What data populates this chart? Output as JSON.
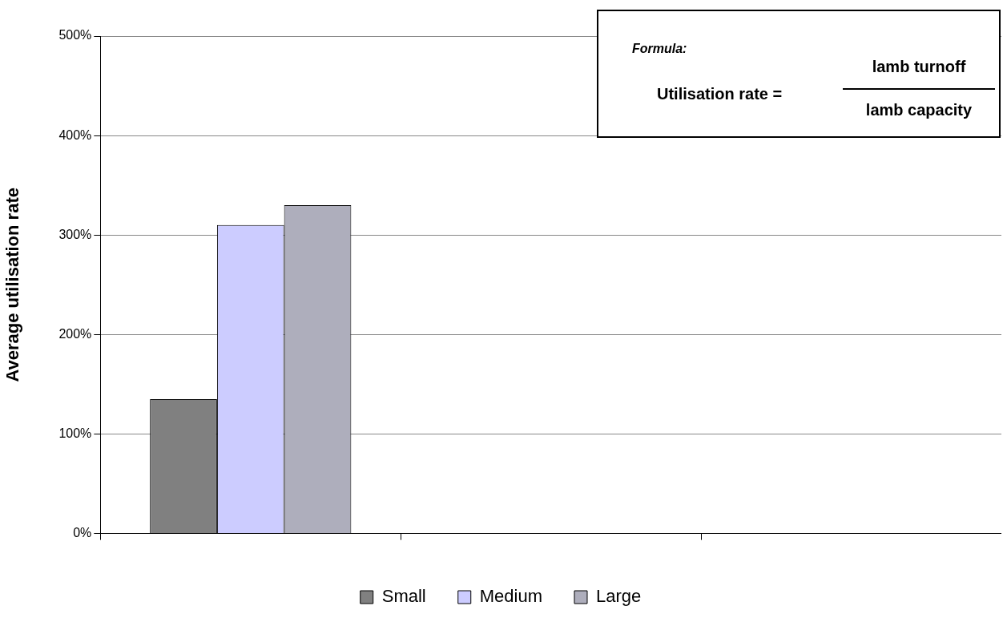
{
  "chart_data": {
    "type": "bar",
    "ylabel": "Average utilisation rate",
    "categories": [
      null,
      null,
      null
    ],
    "series": [
      {
        "name": "Small",
        "color": "#808080",
        "values": [
          135,
          null,
          null
        ]
      },
      {
        "name": "Medium",
        "color": "#ccccff",
        "values": [
          310,
          null,
          null
        ]
      },
      {
        "name": "Large",
        "color": "#aeaebc",
        "values": [
          330,
          null,
          null
        ]
      }
    ],
    "ylim": [
      0,
      500
    ],
    "yticks": [
      {
        "value": 0,
        "label": "0%"
      },
      {
        "value": 100,
        "label": "100%"
      },
      {
        "value": 200,
        "label": "200%"
      },
      {
        "value": 300,
        "label": "300%"
      },
      {
        "value": 400,
        "label": "400%"
      },
      {
        "value": 500,
        "label": "500%"
      }
    ],
    "grid": "y",
    "legend": "bottom",
    "annotations": [
      "Formula:",
      "Utilisation rate =",
      "lamb turnoff",
      "lamb capacity"
    ]
  }
}
